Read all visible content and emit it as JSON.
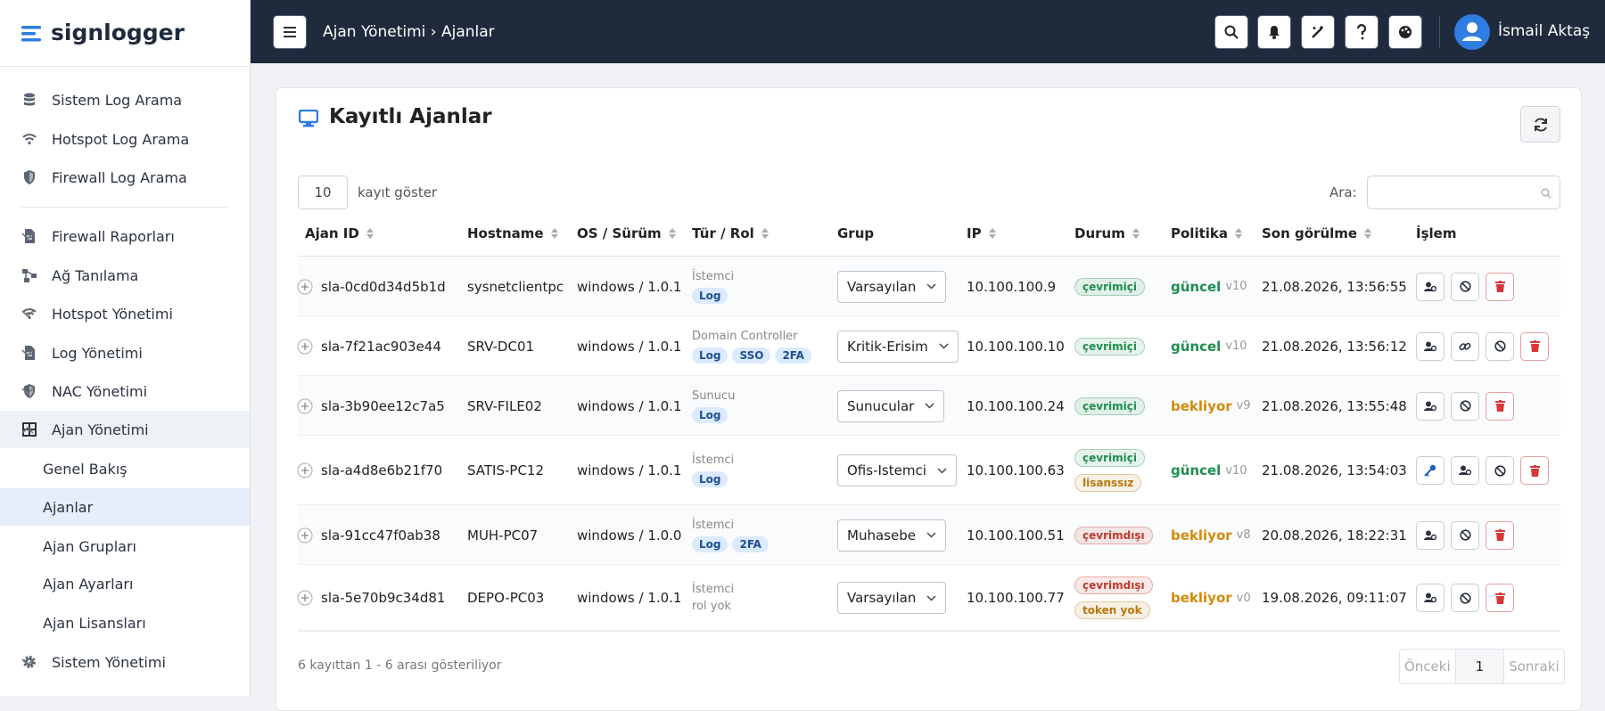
{
  "brand": "signlogger",
  "sidebar": {
    "search": [
      "Sistem Log Arama",
      "Hotspot Log Arama",
      "Firewall Log Arama"
    ],
    "menu": [
      "Firewall Raporları",
      "Ağ Tanılama",
      "Hotspot Yönetimi",
      "Log Yönetimi",
      "NAC Yönetimi",
      "Ajan Yönetimi"
    ],
    "submenu": [
      "Genel Bakış",
      "Ajanlar",
      "Ajan Grupları",
      "Ajan Ayarları",
      "Ajan Lisansları"
    ],
    "bottom": [
      "Sistem Yönetimi"
    ]
  },
  "topbar": {
    "breadcrumb": "Ajan Yönetimi › Ajanlar",
    "user": "İsmail Aktaş"
  },
  "card": {
    "title": "Kayıtlı Ajanlar",
    "page_length": "10",
    "length_label": "kayıt göster",
    "search_label": "Ara:",
    "info": "6 kayıttan 1 - 6 arası gösteriliyor",
    "pagination": [
      "Önceki",
      "1",
      "Sonraki"
    ]
  },
  "table": {
    "columns": [
      "Ajan ID",
      "Hostname",
      "OS / Sürüm",
      "Tür / Rol",
      "Grup",
      "IP",
      "Durum",
      "Politika",
      "Son görülme",
      "İşlem"
    ],
    "rows": [
      {
        "id": "sla-0cd0d34d5b1d",
        "hostname": "sysnetclientpc",
        "os": "windows / 1.0.1",
        "type": "İstemci",
        "tags": [
          "Log"
        ],
        "group": "Varsayılan",
        "ip": "10.100.100.9",
        "status": [
          {
            "label": "çevrimiçi",
            "color": "#1e8e4e"
          }
        ],
        "policy": {
          "label": "güncel",
          "version": "v10",
          "color": "#1e8e4e"
        },
        "last_seen": "21.08.2026, 13:56:55"
      },
      {
        "id": "sla-7f21ac903e44",
        "hostname": "SRV-DC01",
        "os": "windows / 1.0.1",
        "type": "Domain Controller",
        "tags": [
          "Log",
          "SSO",
          "2FA"
        ],
        "group": "Kritik-Erisim",
        "ip": "10.100.100.10",
        "status": [
          {
            "label": "çevrimiçi",
            "color": "#1e8e4e"
          }
        ],
        "policy": {
          "label": "güncel",
          "version": "v10",
          "color": "#1e8e4e"
        },
        "last_seen": "21.08.2026, 13:56:12"
      },
      {
        "id": "sla-3b90ee12c7a5",
        "hostname": "SRV-FILE02",
        "os": "windows / 1.0.1",
        "type": "Sunucu",
        "tags": [
          "Log"
        ],
        "group": "Sunucular",
        "ip": "10.100.100.24",
        "status": [
          {
            "label": "çevrimiçi",
            "color": "#1e8e4e"
          }
        ],
        "policy": {
          "label": "bekliyor",
          "version": "v9",
          "color": "#d48a0a"
        },
        "last_seen": "21.08.2026, 13:55:48"
      },
      {
        "id": "sla-a4d8e6b21f70",
        "hostname": "SATIS-PC12",
        "os": "windows / 1.0.1",
        "type": "İstemci",
        "tags": [
          "Log"
        ],
        "group": "Ofis-Istemci",
        "ip": "10.100.100.63",
        "status": [
          {
            "label": "çevrimiçi",
            "color": "#1e8e4e"
          },
          {
            "label": "lisanssız",
            "color": "#b9770e"
          }
        ],
        "policy": {
          "label": "güncel",
          "version": "v10",
          "color": "#1e8e4e"
        },
        "last_seen": "21.08.2026, 13:54:03"
      },
      {
        "id": "sla-91cc47f0ab38",
        "hostname": "MUH-PC07",
        "os": "windows / 1.0.0",
        "type": "İstemci",
        "tags": [
          "Log",
          "2FA"
        ],
        "group": "Muhasebe",
        "ip": "10.100.100.51",
        "status": [
          {
            "label": "çevrimdışı",
            "color": "#c0392b"
          }
        ],
        "policy": {
          "label": "bekliyor",
          "version": "v8",
          "color": "#d48a0a"
        },
        "last_seen": "20.08.2026, 18:22:31"
      },
      {
        "id": "sla-5e70b9c34d81",
        "hostname": "DEPO-PC03",
        "os": "windows / 1.0.1",
        "type": "İstemci",
        "role_note": "rol yok",
        "group": "Varsayılan",
        "ip": "10.100.100.77",
        "status": [
          {
            "label": "çevrimdışı",
            "color": "#c0392b"
          },
          {
            "label": "token yok",
            "color": "#b9770e"
          }
        ],
        "policy": {
          "label": "bekliyor",
          "version": "v0",
          "color": "#d48a0a"
        },
        "last_seen": "19.08.2026, 09:11:07"
      }
    ]
  }
}
